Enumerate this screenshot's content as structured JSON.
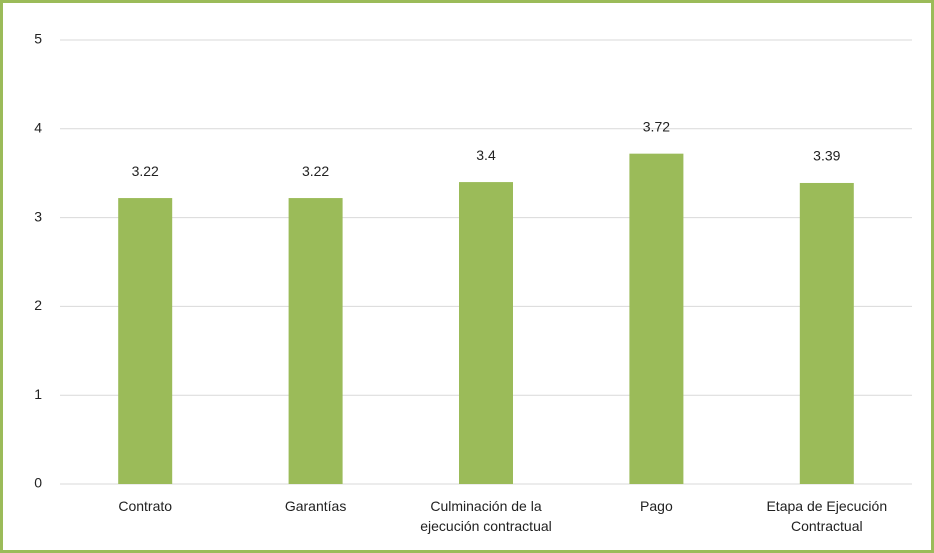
{
  "chart_data": {
    "type": "bar",
    "categories": [
      "Contrato",
      "Garantías",
      "Culminación de la ejecución contractual",
      "Pago",
      "Etapa de Ejecución Contractual"
    ],
    "values": [
      3.22,
      3.22,
      3.4,
      3.72,
      3.39
    ],
    "color": "#9bbb59",
    "ylim": [
      0,
      5
    ],
    "yticks": [
      0,
      1,
      2,
      3,
      4,
      5
    ],
    "grid": true
  }
}
